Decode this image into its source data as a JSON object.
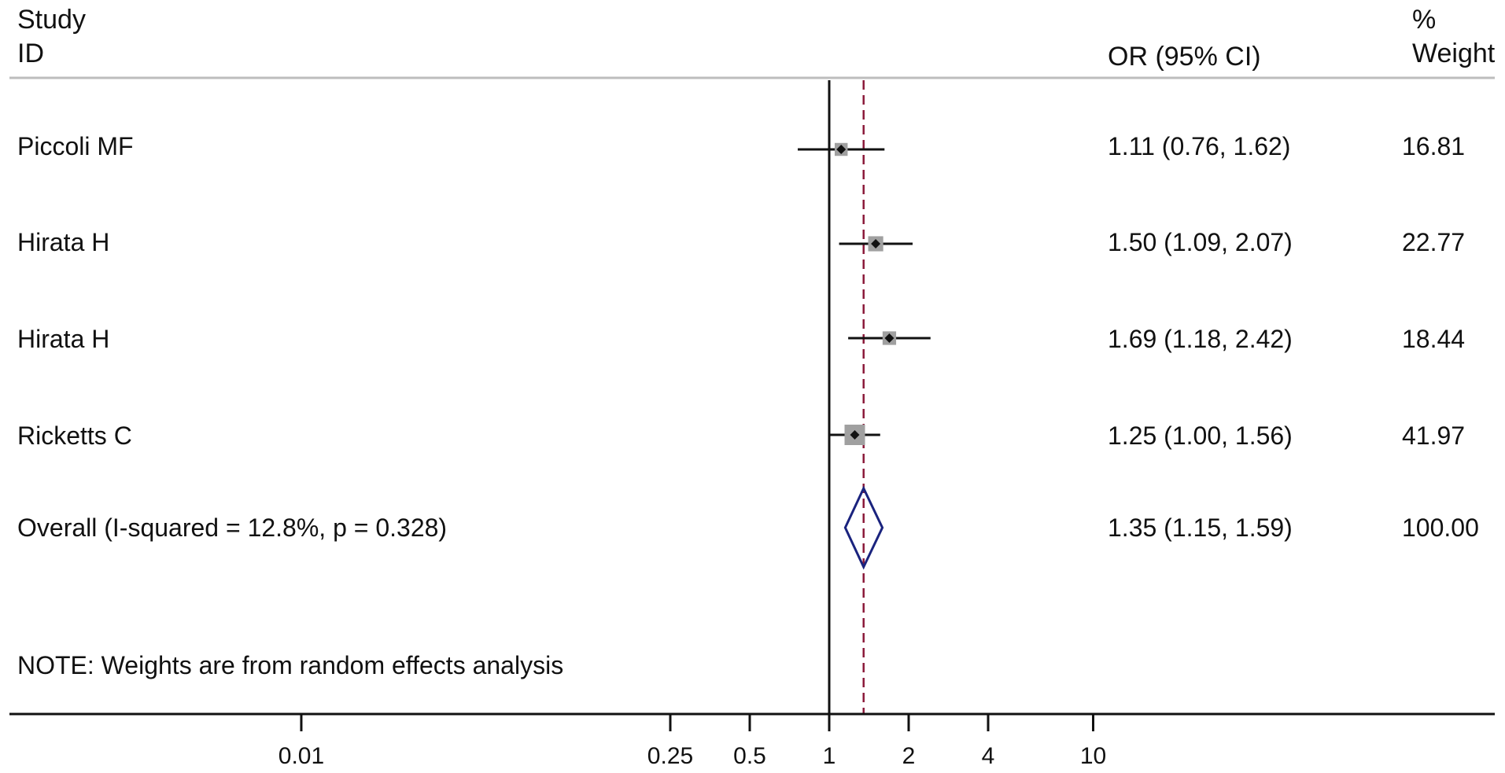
{
  "header": {
    "study_line1": "Study",
    "study_line2": "ID",
    "or_label": "OR (95% CI)",
    "weight_line1": "%",
    "weight_line2": "Weight"
  },
  "note": "NOTE: Weights are from random effects analysis",
  "colors": {
    "text": "#111111",
    "marker_box": "#a0a0a0",
    "diamond": "#1a237e",
    "overall_line": "#8b1a3a",
    "rule": "#bdbdbd"
  },
  "chart_data": {
    "type": "forest",
    "scale": "log",
    "xlim": [
      0.01,
      10
    ],
    "reference_line": 1,
    "overall_line": 1.35,
    "x_ticks": [
      0.01,
      0.25,
      0.5,
      1,
      2,
      4,
      10
    ],
    "x_tick_labels": [
      "0.01",
      "0.25",
      "0.5",
      "1",
      "2",
      "4",
      "10"
    ],
    "studies": [
      {
        "id": "Piccoli MF",
        "or": 1.11,
        "ci": [
          0.76,
          1.62
        ],
        "or_text": "1.11 (0.76, 1.62)",
        "weight": 16.81,
        "weight_text": "16.81"
      },
      {
        "id": "Hirata H",
        "or": 1.5,
        "ci": [
          1.09,
          2.07
        ],
        "or_text": "1.50 (1.09, 2.07)",
        "weight": 22.77,
        "weight_text": "22.77"
      },
      {
        "id": "Hirata H",
        "or": 1.69,
        "ci": [
          1.18,
          2.42
        ],
        "or_text": "1.69 (1.18, 2.42)",
        "weight": 18.44,
        "weight_text": "18.44"
      },
      {
        "id": "Ricketts C",
        "or": 1.25,
        "ci": [
          1.0,
          1.56
        ],
        "or_text": "1.25 (1.00, 1.56)",
        "weight": 41.97,
        "weight_text": "41.97"
      }
    ],
    "overall": {
      "label": "Overall (I-squared = 12.8%, p = 0.328)",
      "or": 1.35,
      "ci": [
        1.15,
        1.59
      ],
      "or_text": "1.35 (1.15, 1.59)",
      "weight": 100.0,
      "weight_text": "100.00"
    }
  }
}
